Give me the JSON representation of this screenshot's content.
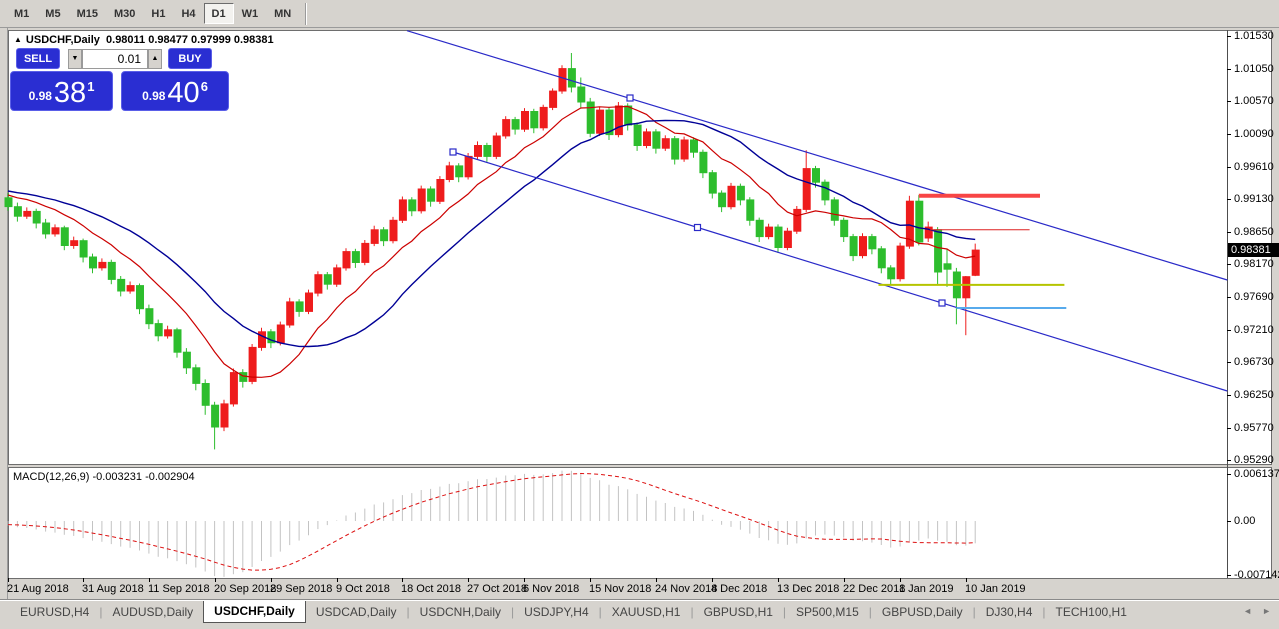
{
  "toolbar": {
    "timeframes": [
      "M1",
      "M5",
      "M15",
      "M30",
      "H1",
      "H4",
      "D1",
      "W1",
      "MN"
    ],
    "active_timeframe": "D1"
  },
  "chart": {
    "collapse_arrow": "▲",
    "symbol_title": "USDCHF,Daily",
    "ohlc_display": "0.98011 0.98477 0.97999 0.98381",
    "trade_widget": {
      "sell_label": "SELL",
      "buy_label": "BUY",
      "volume": "0.01",
      "spin_down": "▼",
      "spin_up": "▲",
      "sell_price": {
        "prefix": "0.98",
        "big": "38",
        "sup": "1"
      },
      "buy_price": {
        "prefix": "0.98",
        "big": "40",
        "sup": "6"
      }
    },
    "macd_label": "MACD(12,26,9) -0.003231 -0.002904",
    "price_axis_current": "0.98381"
  },
  "tabs": {
    "items": [
      "EURUSD,H4",
      "AUDUSD,Daily",
      "USDCHF,Daily",
      "USDCAD,Daily",
      "USDCNH,Daily",
      "USDJPY,H4",
      "XAUUSD,H1",
      "GBPUSD,H1",
      "SP500,M15",
      "GBPUSD,Daily",
      "DJ30,H4",
      "TECH100,H1"
    ],
    "active_index": 2,
    "nav_left": "◄",
    "nav_right": "►"
  },
  "chart_data": {
    "type": "candlestick+macd",
    "symbol": "USDCHF",
    "timeframe": "Daily",
    "title": "USDCHF,Daily",
    "ohlc_current": {
      "open": 0.98011,
      "high": 0.98477,
      "low": 0.97999,
      "close": 0.98381
    },
    "colors": {
      "bull": "#ee1c1c",
      "bear": "#2dbd2d",
      "ma_fast": "#cc0000",
      "ma_slow": "#000096",
      "trendline": "#2a2ac8",
      "histogram": "#c3c3c3",
      "signal": "#dd1111",
      "hline_thick_red": "#f84545",
      "hline_thin_red": "#dd2020",
      "hline_olive": "#b5c400",
      "hline_lightblue": "#57aaec"
    },
    "price_axis_ticks": [
      {
        "label": "1.01530",
        "value": 1.0153
      },
      {
        "label": "1.01050",
        "value": 1.0105
      },
      {
        "label": "1.00570",
        "value": 1.0057
      },
      {
        "label": "1.00090",
        "value": 1.0009
      },
      {
        "label": "0.99610",
        "value": 0.9961
      },
      {
        "label": "0.99130",
        "value": 0.9913
      },
      {
        "label": "0.98650",
        "value": 0.9865
      },
      {
        "label": "0.98170",
        "value": 0.9817
      },
      {
        "label": "0.97690",
        "value": 0.9769
      },
      {
        "label": "0.97210",
        "value": 0.9721
      },
      {
        "label": "0.96730",
        "value": 0.9673
      },
      {
        "label": "0.96250",
        "value": 0.9625
      },
      {
        "label": "0.95770",
        "value": 0.9577
      },
      {
        "label": "0.95290",
        "value": 0.9529
      }
    ],
    "current_price": 0.98381,
    "date_axis": [
      {
        "label": "21 Aug 2018",
        "bar": 0
      },
      {
        "label": "31 Aug 2018",
        "bar": 8
      },
      {
        "label": "11 Sep 2018",
        "bar": 15
      },
      {
        "label": "20 Sep 2018",
        "bar": 22
      },
      {
        "label": "29 Sep 2018",
        "bar": 28
      },
      {
        "label": "9 Oct 2018",
        "bar": 35
      },
      {
        "label": "18 Oct 2018",
        "bar": 42
      },
      {
        "label": "27 Oct 2018",
        "bar": 49
      },
      {
        "label": "6 Nov 2018",
        "bar": 55
      },
      {
        "label": "15 Nov 2018",
        "bar": 62
      },
      {
        "label": "24 Nov 2018",
        "bar": 69
      },
      {
        "label": "4 Dec 2018",
        "bar": 75
      },
      {
        "label": "13 Dec 2018",
        "bar": 82
      },
      {
        "label": "22 Dec 2018",
        "bar": 89
      },
      {
        "label": "1 Jan 2019",
        "bar": 95
      },
      {
        "label": "10 Jan 2019",
        "bar": 102
      }
    ],
    "candles": [
      [
        0.9915,
        0.9922,
        0.9896,
        0.9902
      ],
      [
        0.9902,
        0.9908,
        0.988,
        0.9888
      ],
      [
        0.9888,
        0.9901,
        0.9884,
        0.9895
      ],
      [
        0.9895,
        0.9899,
        0.987,
        0.9878
      ],
      [
        0.9878,
        0.9884,
        0.9855,
        0.9862
      ],
      [
        0.9862,
        0.9876,
        0.9858,
        0.9871
      ],
      [
        0.9871,
        0.9874,
        0.9838,
        0.9845
      ],
      [
        0.9845,
        0.9858,
        0.984,
        0.9852
      ],
      [
        0.9852,
        0.9855,
        0.982,
        0.9828
      ],
      [
        0.9828,
        0.9833,
        0.9804,
        0.9812
      ],
      [
        0.9812,
        0.9826,
        0.9808,
        0.982
      ],
      [
        0.982,
        0.9824,
        0.9788,
        0.9795
      ],
      [
        0.9795,
        0.98,
        0.977,
        0.9778
      ],
      [
        0.9778,
        0.9792,
        0.9774,
        0.9786
      ],
      [
        0.9786,
        0.9789,
        0.9744,
        0.9752
      ],
      [
        0.9752,
        0.9758,
        0.9722,
        0.973
      ],
      [
        0.973,
        0.9736,
        0.9704,
        0.9712
      ],
      [
        0.9712,
        0.9727,
        0.9708,
        0.9721
      ],
      [
        0.9721,
        0.9724,
        0.968,
        0.9688
      ],
      [
        0.9688,
        0.9694,
        0.9656,
        0.9665
      ],
      [
        0.9665,
        0.967,
        0.9632,
        0.9642
      ],
      [
        0.9642,
        0.9648,
        0.9596,
        0.961
      ],
      [
        0.961,
        0.9615,
        0.9545,
        0.9578
      ],
      [
        0.9578,
        0.9618,
        0.9572,
        0.9612
      ],
      [
        0.9612,
        0.9664,
        0.9608,
        0.9658
      ],
      [
        0.9658,
        0.9663,
        0.9636,
        0.9645
      ],
      [
        0.9645,
        0.97,
        0.9641,
        0.9695
      ],
      [
        0.9695,
        0.9724,
        0.969,
        0.9718
      ],
      [
        0.9718,
        0.9722,
        0.9694,
        0.9702
      ],
      [
        0.9702,
        0.9733,
        0.9698,
        0.9728
      ],
      [
        0.9728,
        0.9768,
        0.9724,
        0.9762
      ],
      [
        0.9762,
        0.9766,
        0.974,
        0.9748
      ],
      [
        0.9748,
        0.978,
        0.9744,
        0.9775
      ],
      [
        0.9775,
        0.9807,
        0.977,
        0.9802
      ],
      [
        0.9802,
        0.9806,
        0.978,
        0.9788
      ],
      [
        0.9788,
        0.9817,
        0.9784,
        0.9812
      ],
      [
        0.9812,
        0.9841,
        0.9808,
        0.9836
      ],
      [
        0.9836,
        0.984,
        0.9812,
        0.982
      ],
      [
        0.982,
        0.9853,
        0.9816,
        0.9848
      ],
      [
        0.9848,
        0.9874,
        0.9844,
        0.9868
      ],
      [
        0.9868,
        0.9872,
        0.9844,
        0.9852
      ],
      [
        0.9852,
        0.9887,
        0.9848,
        0.9882
      ],
      [
        0.9882,
        0.9917,
        0.9878,
        0.9912
      ],
      [
        0.9912,
        0.9916,
        0.9888,
        0.9896
      ],
      [
        0.9896,
        0.9933,
        0.9892,
        0.9928
      ],
      [
        0.9928,
        0.9932,
        0.9902,
        0.991
      ],
      [
        0.991,
        0.9947,
        0.9906,
        0.9942
      ],
      [
        0.9942,
        0.9968,
        0.9938,
        0.9962
      ],
      [
        0.9962,
        0.9966,
        0.9938,
        0.9946
      ],
      [
        0.9946,
        0.9981,
        0.9942,
        0.9976
      ],
      [
        0.9976,
        0.9998,
        0.9972,
        0.9992
      ],
      [
        0.9992,
        0.9996,
        0.9968,
        0.9976
      ],
      [
        0.9976,
        1.0011,
        0.9972,
        1.0006
      ],
      [
        1.0006,
        1.0035,
        1.0002,
        1.003
      ],
      [
        1.003,
        1.0034,
        1.0008,
        1.0016
      ],
      [
        1.0016,
        1.0047,
        1.0012,
        1.0042
      ],
      [
        1.0042,
        1.0046,
        1.001,
        1.0018
      ],
      [
        1.0018,
        1.0052,
        1.0014,
        1.0048
      ],
      [
        1.0048,
        1.0076,
        1.0044,
        1.0072
      ],
      [
        1.0072,
        1.011,
        1.0068,
        1.0105
      ],
      [
        1.0105,
        1.0128,
        1.007,
        1.0078
      ],
      [
        1.0078,
        1.0092,
        1.0048,
        1.0056
      ],
      [
        1.0056,
        1.0062,
        1.0004,
        1.001
      ],
      [
        1.001,
        1.0048,
        1.0006,
        1.0044
      ],
      [
        1.0044,
        1.0048,
        1.0,
        1.0008
      ],
      [
        1.0008,
        1.0056,
        1.0004,
        1.005
      ],
      [
        1.005,
        1.0054,
        1.0014,
        1.0022
      ],
      [
        1.0022,
        1.0026,
        0.9984,
        0.9992
      ],
      [
        0.9992,
        1.0017,
        0.9988,
        1.0012
      ],
      [
        1.0012,
        1.0016,
        0.998,
        0.9988
      ],
      [
        0.9988,
        1.0007,
        0.9984,
        1.0002
      ],
      [
        1.0002,
        1.0006,
        0.9964,
        0.9972
      ],
      [
        0.9972,
        1.0005,
        0.9968,
        1.0
      ],
      [
        1.0,
        1.0004,
        0.9974,
        0.9982
      ],
      [
        0.9982,
        0.9986,
        0.9944,
        0.9952
      ],
      [
        0.9952,
        0.9956,
        0.9914,
        0.9922
      ],
      [
        0.9922,
        0.9926,
        0.9894,
        0.9902
      ],
      [
        0.9902,
        0.9937,
        0.9898,
        0.9932
      ],
      [
        0.9932,
        0.9936,
        0.9904,
        0.9912
      ],
      [
        0.9912,
        0.9916,
        0.9874,
        0.9882
      ],
      [
        0.9882,
        0.9886,
        0.985,
        0.9858
      ],
      [
        0.9858,
        0.9877,
        0.9854,
        0.9872
      ],
      [
        0.9872,
        0.9876,
        0.9834,
        0.9842
      ],
      [
        0.9842,
        0.9871,
        0.9838,
        0.9866
      ],
      [
        0.9866,
        0.9903,
        0.9862,
        0.9898
      ],
      [
        0.9898,
        0.9985,
        0.9894,
        0.9958
      ],
      [
        0.9958,
        0.9962,
        0.993,
        0.9938
      ],
      [
        0.9938,
        0.9942,
        0.9904,
        0.9912
      ],
      [
        0.9912,
        0.9916,
        0.9874,
        0.9882
      ],
      [
        0.9882,
        0.9886,
        0.985,
        0.9858
      ],
      [
        0.9858,
        0.9862,
        0.9822,
        0.983
      ],
      [
        0.983,
        0.9863,
        0.9826,
        0.9858
      ],
      [
        0.9858,
        0.9862,
        0.9832,
        0.984
      ],
      [
        0.984,
        0.9844,
        0.9804,
        0.9812
      ],
      [
        0.9812,
        0.9816,
        0.9787,
        0.9796
      ],
      [
        0.9796,
        0.9849,
        0.9792,
        0.9844
      ],
      [
        0.9844,
        0.9918,
        0.984,
        0.991
      ],
      [
        0.991,
        0.9919,
        0.9845,
        0.985
      ],
      [
        0.9856,
        0.988,
        0.985,
        0.9872
      ],
      [
        0.9868,
        0.9872,
        0.9788,
        0.9806
      ],
      [
        0.9818,
        0.9839,
        0.9784,
        0.981
      ],
      [
        0.9806,
        0.9812,
        0.9729,
        0.9768
      ],
      [
        0.9768,
        0.98,
        0.9713,
        0.9799
      ],
      [
        0.98011,
        0.98477,
        0.97999,
        0.98381
      ]
    ],
    "warmup_closes": [
      0.994,
      0.994,
      0.994,
      0.994,
      0.994,
      0.994,
      0.994,
      0.994,
      0.994,
      0.994,
      0.994,
      0.994,
      0.993,
      0.993,
      0.993,
      0.993,
      0.993,
      0.993,
      0.993,
      0.993,
      0.993,
      0.993,
      0.992,
      0.992,
      0.992,
      0.992,
      0.992,
      0.992,
      0.992,
      0.992
    ],
    "moving_averages": [
      {
        "name": "fast",
        "type": "sma",
        "period": 10
      },
      {
        "name": "slow",
        "type": "sma",
        "period": 20
      }
    ],
    "macd": {
      "fast": 12,
      "slow": 26,
      "signal_period": 9,
      "current_macd": -0.003231,
      "current_signal": -0.002904,
      "axis_ticks": [
        {
          "label": "0.006137",
          "value": 0.006137
        },
        {
          "label": "0.00",
          "value": 0.0
        },
        {
          "label": "-0.007142",
          "value": -0.007142
        }
      ]
    },
    "annotations": [
      {
        "kind": "trendline",
        "name": "channel-upper",
        "b1": 42.49,
        "p1": 1.016082,
        "b2": 129.85,
        "p2": 0.979418,
        "squares": [
          [
            66.24,
            1.006182
          ]
        ]
      },
      {
        "kind": "trendline",
        "name": "channel-lower",
        "b1": 47.39,
        "p1": 0.998241,
        "b2": 129.85,
        "p2": 0.963094,
        "squares": [
          [
            47.39,
            0.998241
          ],
          [
            73.43,
            0.987138
          ],
          [
            99.47,
            0.976034
          ]
        ]
      },
      {
        "kind": "hline",
        "name": "resistance-thick-red",
        "price": 0.9918,
        "b1": 97.0,
        "b2": 109.9,
        "width": 4,
        "color_key": "hline_thick_red"
      },
      {
        "kind": "hline",
        "name": "resistance-thin-red",
        "price": 0.9868,
        "b1": 98.2,
        "b2": 108.8,
        "width": 1,
        "color_key": "hline_thin_red"
      },
      {
        "kind": "hline",
        "name": "support-olive",
        "price": 0.9787,
        "b1": 92.7,
        "b2": 112.5,
        "width": 2,
        "color_key": "hline_olive"
      },
      {
        "kind": "hline",
        "name": "support-lightblue",
        "price": 0.9753,
        "b1": 101.0,
        "b2": 112.7,
        "width": 2,
        "color_key": "hline_lightblue"
      }
    ],
    "layout_hints": {
      "grid": false,
      "background": "#ffffff",
      "price_axis_side": "right"
    }
  }
}
